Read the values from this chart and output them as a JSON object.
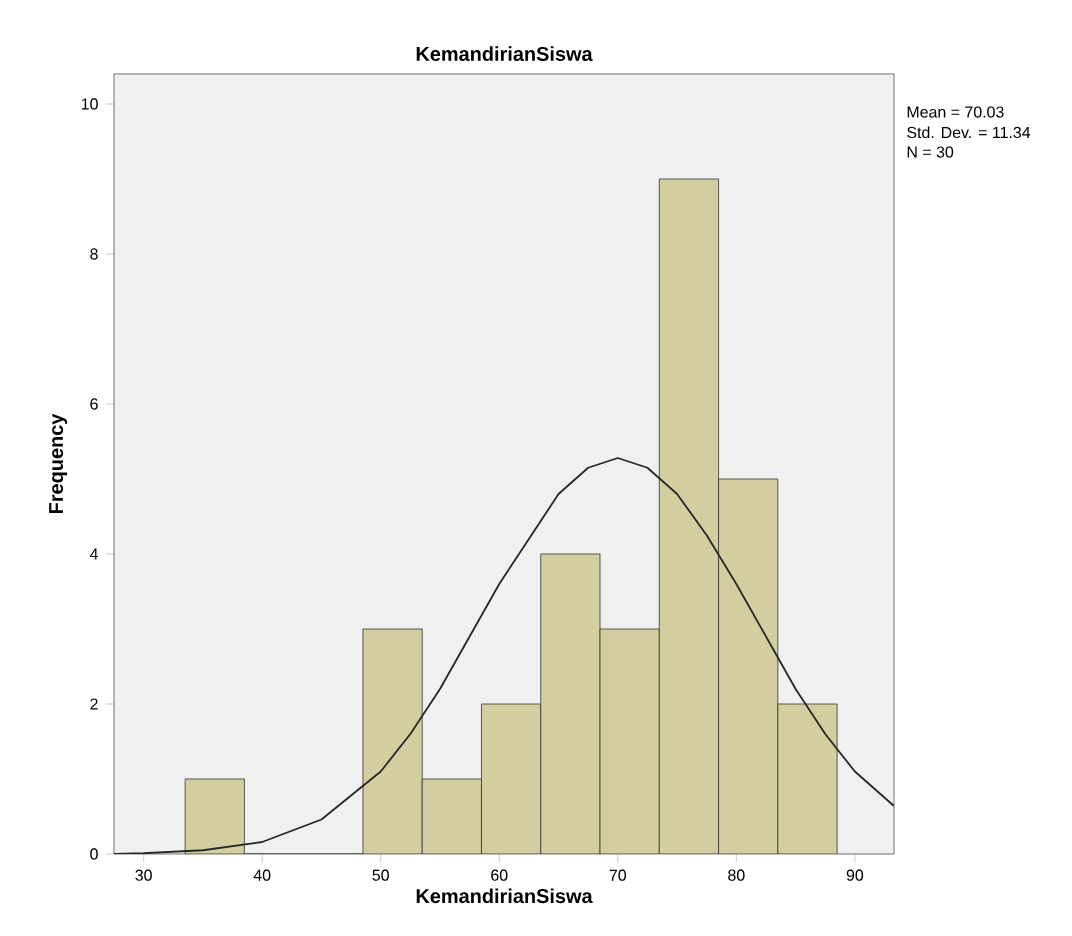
{
  "chart_data": {
    "type": "histogram",
    "title": "KemandirianSiswa",
    "xlabel": "KemandirianSiswa",
    "ylabel": "Frequency",
    "bins": [
      33.5,
      38.5,
      43.5,
      48.5,
      53.5,
      58.5,
      63.5,
      68.5,
      73.5,
      78.5,
      83.5,
      88.5
    ],
    "values": [
      1,
      0,
      0,
      3,
      1,
      2,
      4,
      3,
      9,
      5,
      2
    ],
    "color": "#d3cea0",
    "series": [
      {
        "type": "line",
        "color": "#262626",
        "x": [
          27.5,
          30,
          35,
          40,
          45,
          50,
          52.5,
          55,
          57.5,
          60,
          62.5,
          65,
          67.5,
          70,
          72.5,
          75,
          77.5,
          80,
          82.5,
          85,
          87.5,
          90,
          93.3
        ],
        "values": [
          0.0,
          0.01,
          0.05,
          0.16,
          0.46,
          1.1,
          1.6,
          2.2,
          2.9,
          3.6,
          4.2,
          4.8,
          5.15,
          5.28,
          5.15,
          4.8,
          4.25,
          3.6,
          2.9,
          2.2,
          1.6,
          1.1,
          0.64
        ]
      }
    ],
    "xlim": [
      27.5,
      93.3
    ],
    "ylim": [
      0,
      10.4
    ],
    "xticks": [
      30,
      40,
      50,
      60,
      70,
      80,
      90
    ],
    "yticks": [
      0,
      2,
      4,
      6,
      8,
      10
    ],
    "grid": false,
    "annotations": [
      "Mean = 70.03",
      "Std. Dev. = 11.34",
      "N = 30"
    ]
  }
}
